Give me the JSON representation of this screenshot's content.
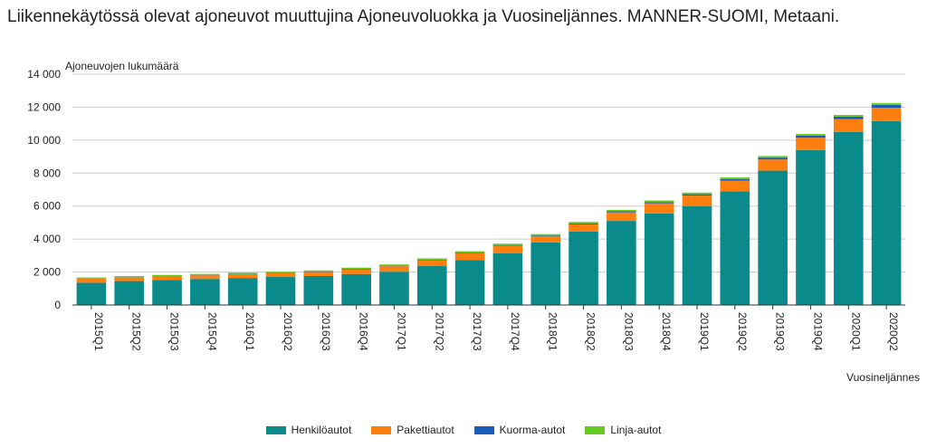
{
  "chart_data": {
    "type": "bar",
    "stacked": true,
    "title": "Liikennekäytössä olevat ajoneuvot muuttujina Ajoneuvoluokka ja Vuosineljännes. MANNER-SUOMI, Metaani.",
    "ylabel": "Ajoneuvojen lukumäärä",
    "xlabel": "Vuosineljännes",
    "ylim": [
      0,
      14000
    ],
    "yticks": [
      "0",
      "2 000",
      "4 000",
      "6 000",
      "8 000",
      "10 000",
      "12 000",
      "14 000"
    ],
    "ytick_values": [
      0,
      2000,
      4000,
      6000,
      8000,
      10000,
      12000,
      14000
    ],
    "grid": true,
    "legend_position": "bottom",
    "categories": [
      "2015Q1",
      "2015Q2",
      "2015Q3",
      "2015Q4",
      "2016Q1",
      "2016Q2",
      "2016Q3",
      "2016Q4",
      "2017Q1",
      "2017Q2",
      "2017Q3",
      "2017Q4",
      "2018Q1",
      "2018Q2",
      "2018Q3",
      "2018Q4",
      "2019Q1",
      "2019Q2",
      "2019Q3",
      "2019Q4",
      "2020Q1",
      "2020Q2"
    ],
    "series": [
      {
        "name": "Henkilöautot",
        "color": "#0a8a8a",
        "values": [
          1350,
          1450,
          1520,
          1580,
          1640,
          1700,
          1760,
          1880,
          2020,
          2360,
          2720,
          3150,
          3800,
          4450,
          5100,
          5550,
          6000,
          6900,
          8150,
          9400,
          10500,
          11150
        ]
      },
      {
        "name": "Pakettiautot",
        "color": "#ff7f0e",
        "values": [
          240,
          220,
          220,
          220,
          230,
          230,
          250,
          290,
          330,
          360,
          420,
          450,
          360,
          440,
          520,
          620,
          640,
          640,
          680,
          750,
          780,
          820
        ]
      },
      {
        "name": "Kuorma-autot",
        "color": "#1a5cb8",
        "values": [
          10,
          15,
          15,
          15,
          20,
          20,
          20,
          25,
          30,
          30,
          40,
          40,
          50,
          60,
          60,
          70,
          80,
          100,
          110,
          130,
          150,
          170
        ]
      },
      {
        "name": "Linja-autot",
        "color": "#66cc22",
        "values": [
          70,
          70,
          70,
          70,
          70,
          70,
          70,
          70,
          80,
          80,
          80,
          80,
          90,
          90,
          90,
          100,
          100,
          100,
          100,
          100,
          100,
          110
        ]
      }
    ]
  }
}
